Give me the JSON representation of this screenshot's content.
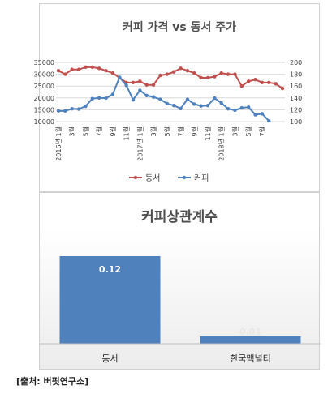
{
  "source_note": "[출처: 버핏연구소]",
  "chart_data": [
    {
      "type": "line",
      "title": "커피 가격 vs 동서 주가",
      "x_tick_labels": [
        "2016년 1월",
        "3월",
        "5월",
        "7월",
        "9월",
        "11월",
        "2017년 1월",
        "3월",
        "5월",
        "7월",
        "9월",
        "11월",
        "2018년 1월",
        "3월",
        "5월",
        "7월"
      ],
      "left_axis": {
        "ylim": [
          10000,
          35000
        ],
        "ticks": [
          "10000",
          "15000",
          "20000",
          "25000",
          "30000",
          "35000"
        ]
      },
      "right_axis": {
        "ylim": [
          100,
          200
        ],
        "ticks": [
          "100",
          "120",
          "140",
          "160",
          "180",
          "200"
        ]
      },
      "legend_position": "bottom",
      "series": [
        {
          "name": "동서",
          "axis": "right",
          "color": "#c0504d",
          "values": [
            186,
            180,
            188,
            188,
            192,
            192,
            190,
            186,
            182,
            174,
            166,
            166,
            168,
            162,
            162,
            178,
            180,
            184,
            190,
            186,
            182,
            174,
            174,
            176,
            182,
            180,
            180,
            160,
            168,
            171,
            166,
            166,
            164,
            156
          ]
        },
        {
          "name": "커피",
          "axis": "left",
          "color": "#4f81bd",
          "values": [
            14500,
            14500,
            15400,
            15300,
            16500,
            19700,
            20000,
            19900,
            21500,
            28700,
            25300,
            19200,
            23200,
            21000,
            20400,
            19400,
            17600,
            16800,
            15500,
            19400,
            17400,
            16600,
            16800,
            19900,
            17800,
            15400,
            14800,
            15800,
            16100,
            12900,
            13300,
            10300
          ]
        }
      ]
    },
    {
      "type": "bar",
      "title": "커피상관계수",
      "categories": [
        "동서",
        "한국맥널티"
      ],
      "values": [
        0.12,
        0.01
      ],
      "value_labels": [
        "0.12",
        "0.01"
      ],
      "color": "#4f81bd"
    }
  ]
}
